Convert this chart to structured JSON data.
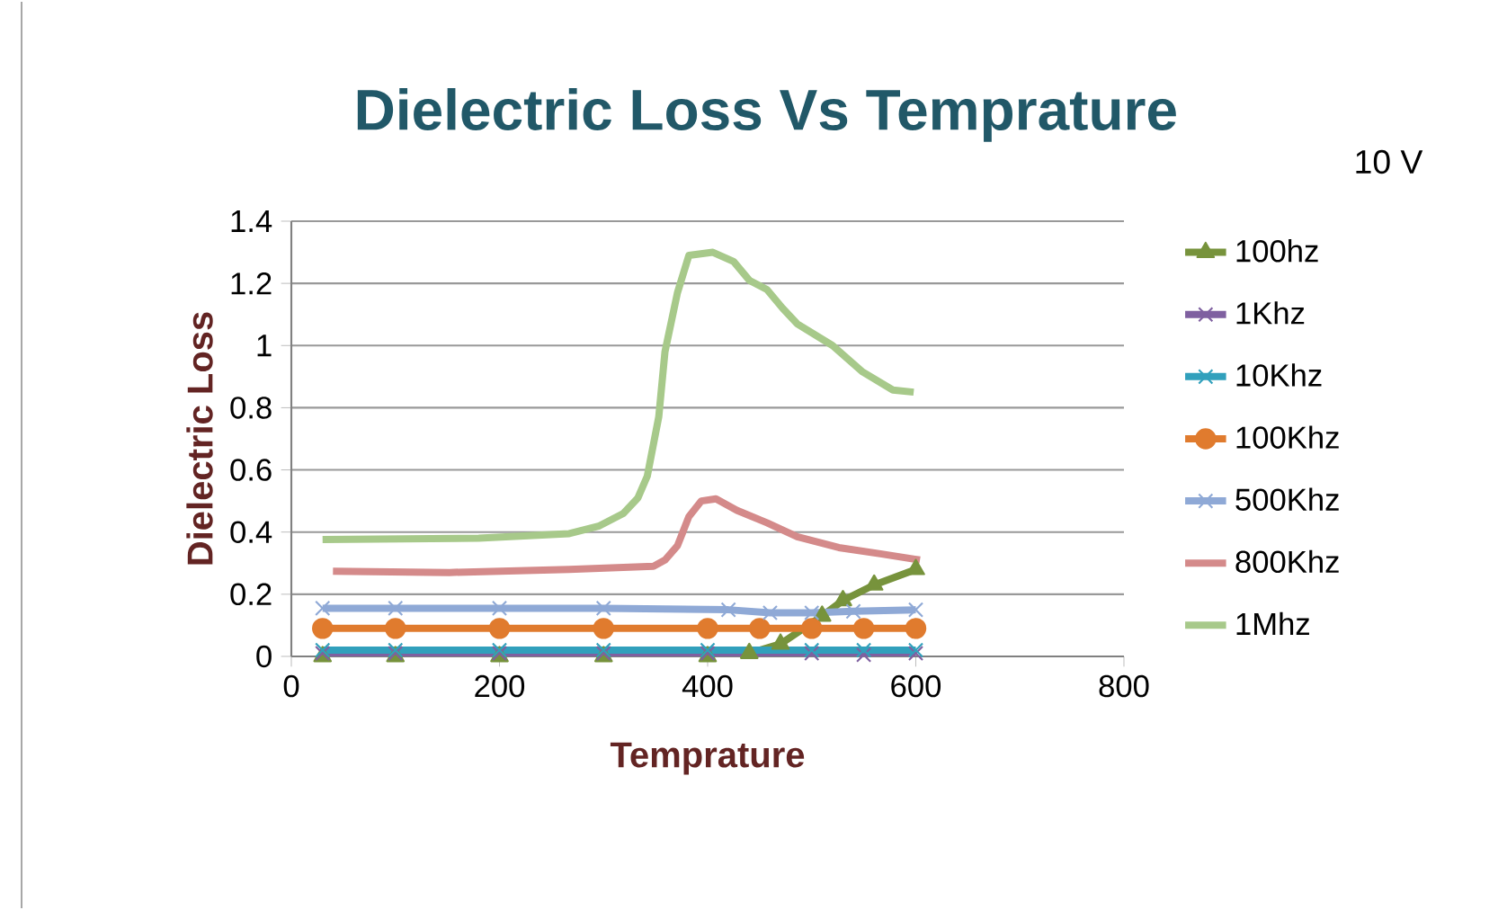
{
  "chart_data": {
    "type": "line",
    "title": "Dielectric Loss Vs Temprature",
    "xlabel": "Temprature",
    "ylabel": "Dielectric Loss",
    "annotations": [
      "10 V"
    ],
    "xlim": [
      0,
      800
    ],
    "ylim": [
      0,
      1.4
    ],
    "xticks": [
      0,
      200,
      400,
      600,
      800
    ],
    "yticks": [
      0,
      0.2,
      0.4,
      0.6,
      0.8,
      1,
      1.2,
      1.4
    ],
    "grid": "y",
    "legend": "right",
    "line_style": "solid",
    "series": [
      {
        "name": "100hz",
        "color": "#77933c",
        "marker": "triangle",
        "x": [
          30,
          100,
          200,
          300,
          400,
          440,
          470,
          510,
          530,
          560,
          600
        ],
        "values": [
          0,
          0,
          0,
          0,
          0,
          0.01,
          0.04,
          0.13,
          0.18,
          0.23,
          0.28
        ]
      },
      {
        "name": "1Khz",
        "color": "#7f60a0",
        "marker": "cross",
        "x": [
          30,
          100,
          200,
          300,
          400,
          500,
          550,
          600
        ],
        "values": [
          0.01,
          0.01,
          0.01,
          0.01,
          0.01,
          0.01,
          0.005,
          0.01
        ]
      },
      {
        "name": "10Khz",
        "color": "#31a0bc",
        "marker": "cross",
        "x": [
          30,
          100,
          200,
          300,
          400,
          500,
          550,
          600
        ],
        "values": [
          0.02,
          0.02,
          0.02,
          0.02,
          0.02,
          0.02,
          0.02,
          0.02
        ]
      },
      {
        "name": "100Khz",
        "color": "#e07b2e",
        "marker": "circle",
        "x": [
          30,
          100,
          200,
          300,
          400,
          450,
          500,
          550,
          600
        ],
        "values": [
          0.09,
          0.09,
          0.09,
          0.09,
          0.09,
          0.09,
          0.09,
          0.09,
          0.09
        ]
      },
      {
        "name": "500Khz",
        "color": "#8fa9d6",
        "marker": "cross",
        "x": [
          30,
          100,
          200,
          300,
          420,
          460,
          500,
          540,
          600
        ],
        "values": [
          0.155,
          0.155,
          0.155,
          0.155,
          0.15,
          0.14,
          0.14,
          0.145,
          0.15
        ]
      },
      {
        "name": "800Khz",
        "color": "#d48a8a",
        "marker": "none",
        "x": [
          40,
          152,
          267,
          348,
          359,
          371,
          382,
          394,
          408,
          428,
          457,
          486,
          526,
          566,
          604
        ],
        "values": [
          0.274,
          0.27,
          0.28,
          0.29,
          0.31,
          0.356,
          0.45,
          0.5,
          0.507,
          0.47,
          0.43,
          0.385,
          0.35,
          0.33,
          0.31
        ]
      },
      {
        "name": "1Mhz",
        "color": "#a7c98a",
        "marker": "none",
        "x": [
          30,
          180,
          267,
          296,
          319,
          333,
          342,
          353,
          359,
          371,
          382,
          405,
          425,
          440,
          457,
          472,
          486,
          520,
          549,
          578,
          598
        ],
        "values": [
          0.376,
          0.38,
          0.395,
          0.42,
          0.46,
          0.51,
          0.58,
          0.77,
          0.98,
          1.17,
          1.29,
          1.3,
          1.27,
          1.21,
          1.18,
          1.12,
          1.07,
          1.0,
          0.915,
          0.857,
          0.85
        ]
      }
    ]
  }
}
